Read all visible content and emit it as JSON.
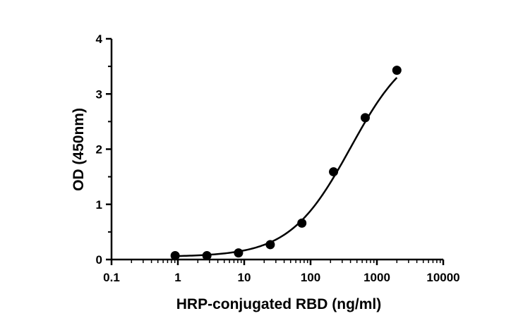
{
  "chart_data": {
    "type": "scatter",
    "title": "",
    "xlabel": "HRP-conjugated RBD (ng/ml)",
    "ylabel": "OD (450nm)",
    "x_scale": "log",
    "xlim": [
      0.1,
      10000
    ],
    "ylim": [
      0,
      4
    ],
    "x_ticks": [
      0.1,
      1,
      10,
      100,
      1000,
      10000
    ],
    "x_tick_labels": [
      "0.1",
      "1",
      "10",
      "100",
      "1000",
      "10000"
    ],
    "y_ticks": [
      0,
      1,
      2,
      3,
      4
    ],
    "y_tick_labels": [
      "0",
      "1",
      "2",
      "3",
      "4"
    ],
    "grid": false,
    "legend": "none",
    "marker_color": "#000000",
    "curve_color": "#000000",
    "series": [
      {
        "x": [
          0.91,
          2.74,
          8.2,
          24.7,
          74,
          222,
          667,
          2000
        ],
        "y": [
          0.07,
          0.07,
          0.12,
          0.27,
          0.66,
          1.59,
          2.57,
          3.43
        ]
      }
    ],
    "fit": {
      "model": "4PL",
      "bottom": 0.05,
      "top": 4.0,
      "ec50": 400,
      "hill": 0.95
    }
  }
}
